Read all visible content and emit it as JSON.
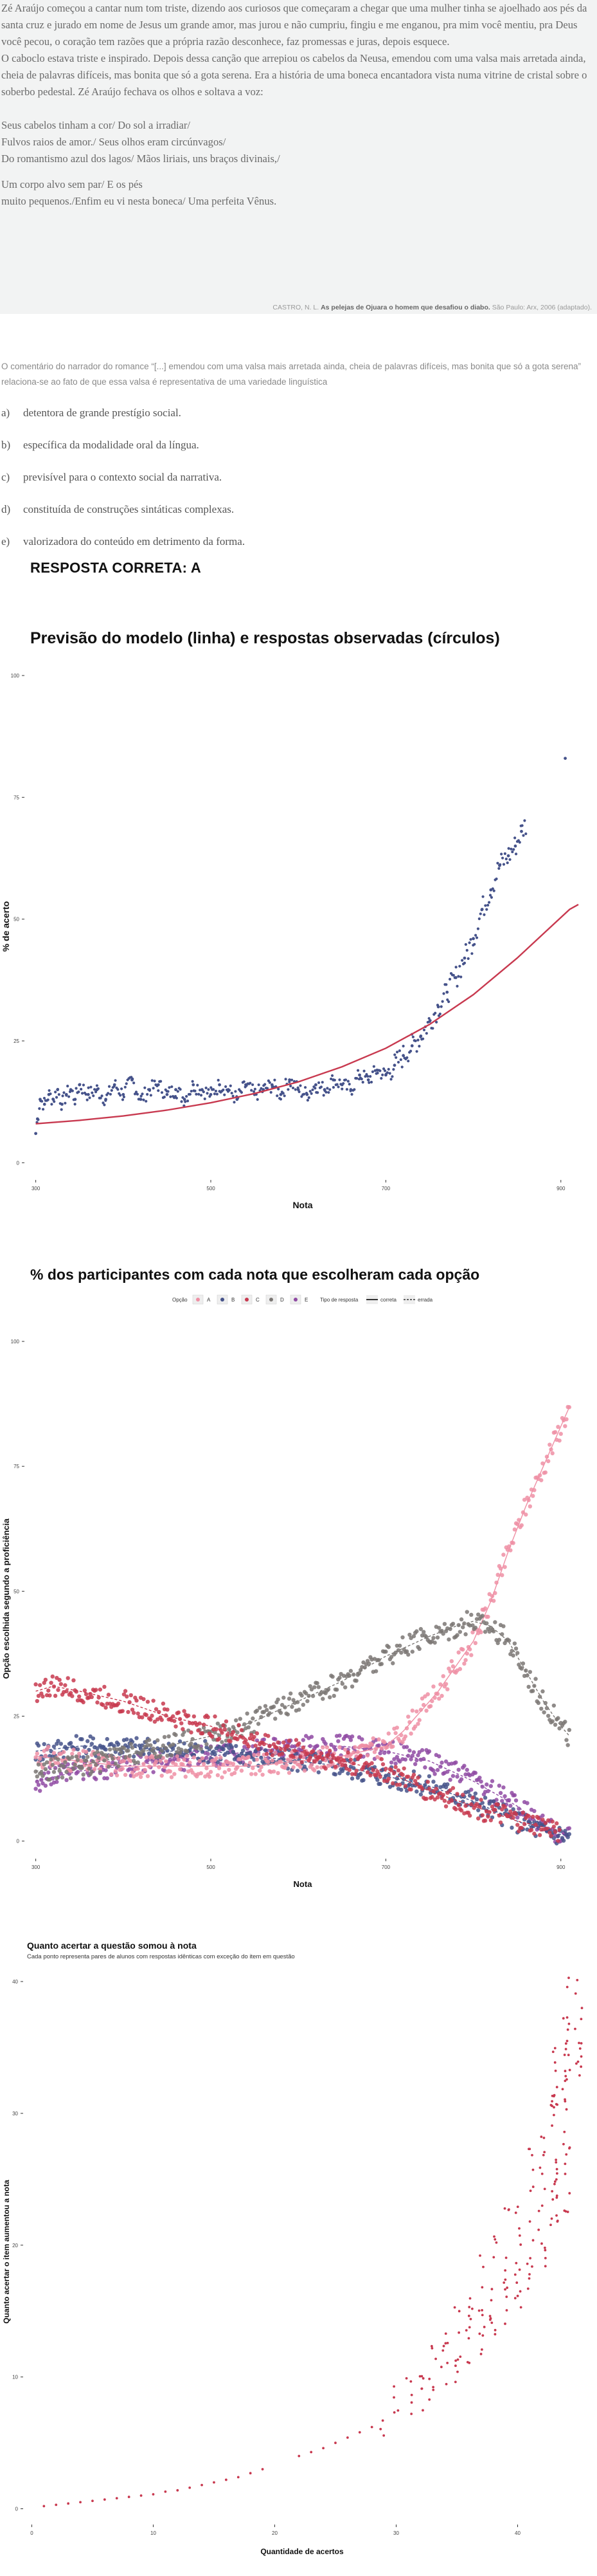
{
  "excerpt": {
    "paragraphs": [
      "Zé Araújo começou a cantar num tom triste, dizendo aos curiosos que começaram a chegar que uma mulher tinha se ajoelhado aos pés da santa cruz e jurado em nome de Jesus um grande  amor, mas jurou e não cumpriu,  fingiu e me enganou, pra mim você mentiu, pra Deus você pecou, o coração tem razões que a própria razão desconhece, faz promessas e juras, depois esquece.",
      "O caboclo estava triste e inspirado. Depois dessa canção que arrepiou os cabelos da Neusa, emendou com uma valsa mais arretada ainda, cheia de palavras difíceis, mas bonita que só a gota serena. Era a história de uma boneca encantadora vista numa vitrine de cristal sobre o soberbo pedestal. Zé Araújo fechava os olhos e soltava a voz:"
    ],
    "poem_lines": [
      "Seus cabelos tinham a cor/ Do sol a irradiar/",
      "Fulvos raios de amor./ Seus olhos eram circúnvagos/",
      "Do romantismo azul dos lagos/ Mãos liriais, uns braços divinais,/"
    ],
    "poem_lines_2": [
      "Um corpo alvo sem par/ E os pés",
      "muito pequenos./Enfim eu vi nesta boneca/ Uma perfeita Vênus."
    ],
    "citation_author": "CASTRO, N. L.",
    "citation_title": "As pelejas de Ojuara o homem que desafiou o diabo.",
    "citation_rest": "São Paulo: Arx, 2006 (adaptado)."
  },
  "question": "O comentário do narrador do romance “[...] emendou com uma valsa mais arretada ainda, cheia de palavras difíceis, mas bonita que só a gota serena” relaciona-se ao fato de que essa valsa é representativa de uma variedade linguística",
  "options": [
    {
      "letter": "a)",
      "text": "detentora de grande prestígio social."
    },
    {
      "letter": "b)",
      "text": "específica da modalidade oral da língua."
    },
    {
      "letter": "c)",
      "text": "previsível para o contexto social da narrativa."
    },
    {
      "letter": "d)",
      "text": "constituída de construções sintáticas complexas."
    },
    {
      "letter": "e)",
      "text": "valorizadora do conteúdo em detrimento da forma."
    }
  ],
  "answer": "RESPOSTA CORRETA: A",
  "colors": {
    "navy": "#45528a",
    "red": "#c8394f",
    "pink": "#ef8fa4",
    "gray": "#7b7774",
    "purple": "#8f4aa3"
  },
  "chart_data": [
    {
      "type": "scatter",
      "title": "Previsão do modelo (linha) e respostas observadas (círculos)",
      "xlabel": "Nota",
      "ylabel": "% de acerto",
      "x_ticks": [
        300,
        500,
        700,
        900
      ],
      "x_tick_labels": [
        "300",
        "500",
        "700",
        "900"
      ],
      "y_ticks": [
        0,
        25,
        50,
        75,
        100
      ],
      "y_tick_labels": [
        "0",
        "25",
        "50",
        "75",
        "100"
      ],
      "xlim": [
        290,
        920
      ],
      "ylim": [
        -3,
        100
      ],
      "points_observed": [
        [
          300,
          6
        ],
        [
          302,
          9
        ],
        [
          305,
          13
        ],
        [
          310,
          12
        ],
        [
          315,
          14
        ],
        [
          320,
          13
        ],
        [
          325,
          15
        ],
        [
          330,
          12
        ],
        [
          335,
          14
        ],
        [
          340,
          15
        ],
        [
          345,
          13
        ],
        [
          350,
          16
        ],
        [
          360,
          14
        ],
        [
          370,
          15
        ],
        [
          380,
          13
        ],
        [
          390,
          16
        ],
        [
          400,
          14
        ],
        [
          410,
          17
        ],
        [
          420,
          13
        ],
        [
          430,
          15
        ],
        [
          440,
          16
        ],
        [
          450,
          14
        ],
        [
          460,
          15
        ],
        [
          470,
          13
        ],
        [
          480,
          16
        ],
        [
          490,
          15
        ],
        [
          500,
          14
        ],
        [
          510,
          16
        ],
        [
          520,
          15
        ],
        [
          530,
          13
        ],
        [
          540,
          16
        ],
        [
          550,
          14
        ],
        [
          560,
          15
        ],
        [
          570,
          16
        ],
        [
          580,
          14
        ],
        [
          590,
          17
        ],
        [
          600,
          15
        ],
        [
          610,
          14
        ],
        [
          620,
          16
        ],
        [
          630,
          15
        ],
        [
          640,
          17
        ],
        [
          650,
          16
        ],
        [
          660,
          15
        ],
        [
          670,
          18
        ],
        [
          680,
          17
        ],
        [
          690,
          19
        ],
        [
          700,
          18
        ],
        [
          710,
          20
        ],
        [
          720,
          22
        ],
        [
          730,
          24
        ],
        [
          740,
          26
        ],
        [
          750,
          29
        ],
        [
          760,
          32
        ],
        [
          770,
          35
        ],
        [
          780,
          38
        ],
        [
          790,
          42
        ],
        [
          800,
          46
        ],
        [
          810,
          52
        ],
        [
          820,
          56
        ],
        [
          830,
          61
        ],
        [
          840,
          63
        ],
        [
          848,
          65
        ],
        [
          855,
          68
        ],
        [
          905,
          83
        ]
      ],
      "model_line": [
        [
          300,
          8
        ],
        [
          350,
          8.7
        ],
        [
          400,
          9.6
        ],
        [
          450,
          10.8
        ],
        [
          500,
          12.3
        ],
        [
          550,
          14.2
        ],
        [
          600,
          16.6
        ],
        [
          650,
          19.7
        ],
        [
          700,
          23.5
        ],
        [
          750,
          28.4
        ],
        [
          800,
          34.5
        ],
        [
          850,
          42
        ],
        [
          880,
          47
        ],
        [
          910,
          52
        ],
        [
          920,
          53
        ]
      ]
    },
    {
      "type": "scatter",
      "title": "% dos participantes com cada nota que escolheram cada opção",
      "xlabel": "Nota",
      "ylabel": "Opção escolhida segundo a proficiência",
      "legend_option_label": "Opção",
      "legend_options": [
        "A",
        "B",
        "C",
        "D",
        "E"
      ],
      "legend_type_label": "Tipo de resposta",
      "legend_types": [
        "correta",
        "errada"
      ],
      "legend_position": "top",
      "x_ticks": [
        300,
        500,
        700,
        900
      ],
      "x_tick_labels": [
        "300",
        "500",
        "700",
        "900"
      ],
      "y_ticks": [
        0,
        25,
        50,
        75,
        100
      ],
      "y_tick_labels": [
        "0",
        "25",
        "50",
        "75",
        "100"
      ],
      "xlim": [
        290,
        920
      ],
      "ylim": [
        -3,
        100
      ],
      "series": [
        {
          "option": "A",
          "type": "correta",
          "color": "#ef8fa4",
          "values": [
            [
              300,
              17
            ],
            [
              350,
              16
            ],
            [
              400,
              15
            ],
            [
              450,
              15
            ],
            [
              500,
              15
            ],
            [
              550,
              15
            ],
            [
              600,
              16
            ],
            [
              650,
              17
            ],
            [
              700,
              19
            ],
            [
              720,
              22
            ],
            [
              740,
              26
            ],
            [
              760,
              30
            ],
            [
              780,
              35
            ],
            [
              800,
              40
            ],
            [
              820,
              48
            ],
            [
              840,
              58
            ],
            [
              860,
              67
            ],
            [
              880,
              75
            ],
            [
              900,
              83
            ],
            [
              910,
              87
            ]
          ]
        },
        {
          "option": "B",
          "type": "errada",
          "color": "#45528a",
          "values": [
            [
              300,
              18
            ],
            [
              350,
              19
            ],
            [
              400,
              19
            ],
            [
              450,
              18
            ],
            [
              500,
              18
            ],
            [
              550,
              17
            ],
            [
              600,
              16
            ],
            [
              650,
              15
            ],
            [
              700,
              13
            ],
            [
              750,
              11
            ],
            [
              800,
              8
            ],
            [
              850,
              4
            ],
            [
              880,
              2
            ],
            [
              910,
              1
            ]
          ]
        },
        {
          "option": "C",
          "type": "errada",
          "color": "#c8394f",
          "values": [
            [
              300,
              30
            ],
            [
              320,
              31
            ],
            [
              350,
              30
            ],
            [
              400,
              28
            ],
            [
              450,
              25
            ],
            [
              500,
              23
            ],
            [
              550,
              20
            ],
            [
              600,
              18
            ],
            [
              650,
              16
            ],
            [
              700,
              14
            ],
            [
              750,
              10
            ],
            [
              800,
              7
            ],
            [
              850,
              4
            ],
            [
              900,
              2
            ]
          ]
        },
        {
          "option": "D",
          "type": "errada",
          "color": "#7b7774",
          "values": [
            [
              300,
              14
            ],
            [
              350,
              15
            ],
            [
              400,
              17
            ],
            [
              450,
              19
            ],
            [
              500,
              21
            ],
            [
              550,
              24
            ],
            [
              600,
              28
            ],
            [
              650,
              32
            ],
            [
              700,
              37
            ],
            [
              750,
              41
            ],
            [
              780,
              43
            ],
            [
              800,
              44
            ],
            [
              820,
              43
            ],
            [
              840,
              40
            ],
            [
              860,
              34
            ],
            [
              880,
              28
            ],
            [
              900,
              23
            ],
            [
              910,
              21
            ]
          ]
        },
        {
          "option": "E",
          "type": "errada",
          "color": "#8f4aa3",
          "values": [
            [
              300,
              12
            ],
            [
              350,
              14
            ],
            [
              400,
              15
            ],
            [
              450,
              16
            ],
            [
              500,
              17
            ],
            [
              550,
              18
            ],
            [
              600,
              19
            ],
            [
              650,
              19
            ],
            [
              700,
              18
            ],
            [
              750,
              16
            ],
            [
              800,
              12
            ],
            [
              850,
              7
            ],
            [
              880,
              3
            ],
            [
              910,
              1
            ]
          ]
        }
      ]
    },
    {
      "type": "scatter",
      "title": "Quanto acertar a questão somou à nota",
      "subtitle": "Cada ponto representa pares de alunos com respostas idênticas com exceção do item em questão",
      "xlabel": "Quantidade de acertos",
      "ylabel": "Quanto acertar o item aumentou a nota",
      "x_ticks": [
        0,
        10,
        20,
        30,
        40
      ],
      "x_tick_labels": [
        "0",
        "10",
        "20",
        "30",
        "40"
      ],
      "y_ticks": [
        0,
        10,
        20,
        30,
        40
      ],
      "y_tick_labels": [
        "0",
        "10",
        "20",
        "30",
        "40"
      ],
      "xlim": [
        -0.5,
        45
      ],
      "ylim": [
        -1,
        40
      ],
      "points": [
        [
          1,
          0.2
        ],
        [
          2,
          0.3
        ],
        [
          3,
          0.4
        ],
        [
          4,
          0.5
        ],
        [
          5,
          0.6
        ],
        [
          6,
          0.7
        ],
        [
          7,
          0.8
        ],
        [
          8,
          0.9
        ],
        [
          9,
          1.0
        ],
        [
          10,
          1.1
        ],
        [
          11,
          1.3
        ],
        [
          12,
          1.4
        ],
        [
          13,
          1.6
        ],
        [
          14,
          1.8
        ],
        [
          15,
          2.0
        ],
        [
          16,
          2.2
        ],
        [
          17,
          2.4
        ],
        [
          18,
          2.7
        ],
        [
          19,
          3.0
        ],
        [
          22,
          4.0
        ],
        [
          23,
          4.3
        ],
        [
          24,
          4.6
        ],
        [
          25,
          5.0
        ],
        [
          26,
          5.4
        ],
        [
          27,
          5.8
        ],
        [
          28,
          6.2
        ],
        [
          29,
          6.7
        ],
        [
          30,
          7.5
        ],
        [
          31,
          8.3
        ],
        [
          32,
          9.2
        ],
        [
          33,
          10.2
        ],
        [
          34,
          11.3
        ],
        [
          35,
          12.5
        ],
        [
          36,
          14
        ],
        [
          37,
          15.5
        ],
        [
          38,
          17
        ],
        [
          39,
          18.5
        ],
        [
          40,
          20
        ],
        [
          41,
          22
        ],
        [
          42,
          24.5
        ],
        [
          43,
          26
        ],
        [
          43,
          28
        ],
        [
          44,
          30
        ],
        [
          44,
          35
        ],
        [
          45,
          40
        ]
      ]
    }
  ]
}
